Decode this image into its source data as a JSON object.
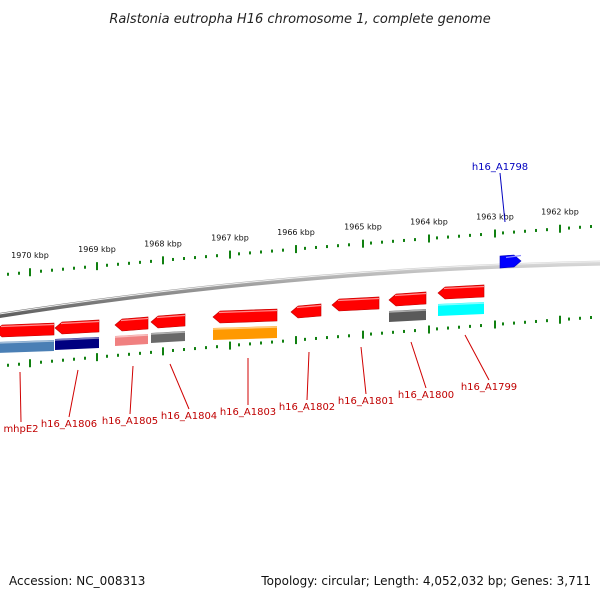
{
  "title": "Ralstonia eutropha H16 chromosome 1, complete genome",
  "footer": {
    "accession": "Accession: NC_008313",
    "topology": "Topology: circular; Length: 4,052,032 bp; Genes: 3,711"
  },
  "scale": {
    "unit": "kbp",
    "ticks": [
      "1970 kbp",
      "1969 kbp",
      "1968 kbp",
      "1967 kbp",
      "1966 kbp",
      "1965 kbp",
      "1964 kbp",
      "1963 kbp",
      "1962 kbp"
    ]
  },
  "genes": [
    {
      "label": "mhpE2",
      "strand": "reverse",
      "color": "#ff0000",
      "product_color": "#4a7fb5"
    },
    {
      "label": "h16_A1806",
      "strand": "reverse",
      "color": "#ff0000",
      "product_color": "#000080"
    },
    {
      "label": "h16_A1805",
      "strand": "reverse",
      "color": "#ff0000",
      "product_color": "#f08080"
    },
    {
      "label": "h16_A1804",
      "strand": "reverse",
      "color": "#ff0000",
      "product_color": "#696969"
    },
    {
      "label": "h16_A1803",
      "strand": "reverse",
      "color": "#ff0000",
      "product_color": "#ff9900"
    },
    {
      "label": "h16_A1802",
      "strand": "reverse",
      "color": "#ff0000",
      "product_color": null
    },
    {
      "label": "h16_A1801",
      "strand": "reverse",
      "color": "#ff0000",
      "product_color": null
    },
    {
      "label": "h16_A1800",
      "strand": "reverse",
      "color": "#ff0000",
      "product_color": "#5a5a5a"
    },
    {
      "label": "h16_A1799",
      "strand": "reverse",
      "color": "#ff0000",
      "product_color": "#00ffff"
    },
    {
      "label": "h16_A1798",
      "strand": "forward",
      "color": "#0000ff",
      "product_color": null
    }
  ]
}
